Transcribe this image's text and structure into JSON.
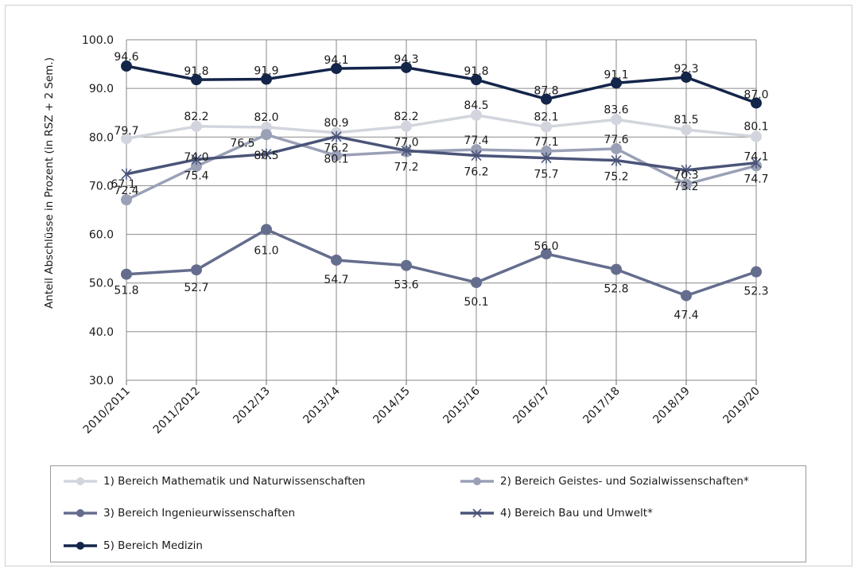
{
  "chart_data": {
    "type": "line",
    "title": "",
    "xlabel": "",
    "ylabel": "Anteil Abschlüsse in Prozent (in RSZ + 2 Sem.)",
    "ylim": [
      30,
      100
    ],
    "yticks": [
      "30.0",
      "40.0",
      "50.0",
      "60.0",
      "70.0",
      "80.0",
      "90.0",
      "100.0"
    ],
    "grid": "vertical and horizontal",
    "legend_placement": "bottom",
    "categories": [
      "2010/2011",
      "2011/2012",
      "2012/13",
      "2013/14",
      "2014/15",
      "2015/16",
      "2016/17",
      "2017/18",
      "2018/19",
      "2019/20"
    ],
    "series": [
      {
        "name": "1) Bereich Mathematik und Naturwissenschaften",
        "color": "#d2d5dd",
        "marker": "circle",
        "values": [
          79.7,
          82.2,
          82.0,
          80.9,
          82.2,
          84.5,
          82.1,
          83.6,
          81.5,
          80.1
        ],
        "labels": [
          "79.7",
          "82.2",
          "82.0",
          "80.9",
          "82.2",
          "84.5",
          "82.1",
          "83.6",
          "81.5",
          "80.1"
        ]
      },
      {
        "name": "2) Bereich Geistes- und Sozialwissenschaften*",
        "color": "#9aa0b6",
        "marker": "circle",
        "values": [
          67.1,
          74.0,
          80.5,
          76.2,
          77.0,
          77.4,
          77.1,
          77.6,
          70.3,
          74.1
        ],
        "labels": [
          "67.1",
          "74.0",
          "80.5",
          "76.2",
          "77.0",
          "77.4",
          "77.1",
          "77.6",
          "70.3",
          "74.1"
        ]
      },
      {
        "name": "3) Bereich Ingenieurwissenschaften",
        "color": "#646d8d",
        "marker": "circle",
        "values": [
          51.8,
          52.7,
          61.0,
          54.7,
          53.6,
          50.1,
          56.0,
          52.8,
          47.4,
          52.3
        ],
        "labels": [
          "51.8",
          "52.7",
          "61.0",
          "54.7",
          "53.6",
          "50.1",
          "56.0",
          "52.8",
          "47.4",
          "52.3"
        ]
      },
      {
        "name": "4) Bereich Bau und Umwelt*",
        "color": "#4a5478",
        "marker": "asterisk",
        "values": [
          72.4,
          75.4,
          76.5,
          80.1,
          77.2,
          76.2,
          75.7,
          75.2,
          73.2,
          74.7
        ],
        "labels": [
          "72.4",
          "75.4",
          "76.5",
          "80.1",
          "77.2",
          "76.2",
          "75.7",
          "75.2",
          "73.2",
          "74.7"
        ]
      },
      {
        "name": "5) Bereich Medizin",
        "color": "#14254a",
        "marker": "circle",
        "values": [
          94.6,
          91.8,
          91.9,
          94.1,
          94.3,
          91.8,
          87.8,
          91.1,
          92.3,
          87.0
        ],
        "labels": [
          "94.6",
          "91.8",
          "91.9",
          "94.1",
          "94.3",
          "91.8",
          "87.8",
          "91.1",
          "92.3",
          "87.0"
        ]
      }
    ]
  }
}
